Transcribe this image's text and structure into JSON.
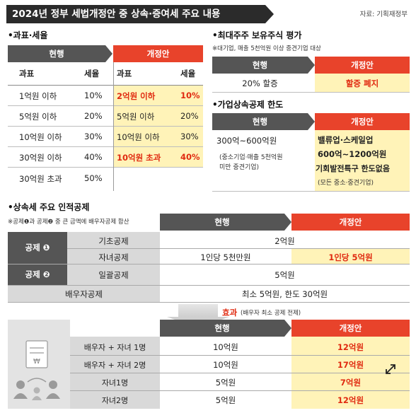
{
  "title": "2024년 정부 세법개정안 중 상속·증여세 주요 내용",
  "source": "자료: 기획재정부",
  "tax": {
    "section": "•과표·세율",
    "hdr_current": "현행",
    "hdr_revised": "개정안",
    "col_base": "과표",
    "col_rate": "세율",
    "rows": [
      {
        "cur_base": "1억원 이하",
        "cur_rate": "10%",
        "new_base": "2억원 이하",
        "new_rate": "10%"
      },
      {
        "cur_base": "5억원 이하",
        "cur_rate": "20%",
        "new_base": "5억원 이하",
        "new_rate": "20%"
      },
      {
        "cur_base": "10억원 이하",
        "cur_rate": "30%",
        "new_base": "10억원 이하",
        "new_rate": "30%"
      },
      {
        "cur_base": "30억원 이하",
        "cur_rate": "40%",
        "new_base": "10억원 초과",
        "new_rate": "40%"
      },
      {
        "cur_base": "30억원 초과",
        "cur_rate": "50%",
        "new_base": "",
        "new_rate": ""
      }
    ]
  },
  "stock": {
    "section": "•최대주주 보유주식 평가",
    "note": "※대기업, 매출 5천억원 이상 중견기업 대상",
    "hdr_current": "현행",
    "hdr_revised": "개정안",
    "current": "20% 할증",
    "revised": "할증 폐지"
  },
  "family": {
    "section": "•가업상속공제 한도",
    "hdr_current": "현행",
    "hdr_revised": "개정안",
    "current_main": "300억~600억원",
    "current_sub1": "(중소기업·매출 5천억원",
    "current_sub2": "미만 중견기업)",
    "revised_1": "밸류업·스케일업",
    "revised_2": "600억~1200억원",
    "revised_3": "기회발전특구 한도없음",
    "revised_4": "(모든 중소·중견기업)"
  },
  "deduction": {
    "section": "•상속세 주요 인적공제",
    "note": "※공제❶과 공제❷ 중 큰 금액에 배우자공제 합산",
    "hdr_current": "현행",
    "hdr_revised": "개정안",
    "group1": "공제 ❶",
    "group2": "공제 ❷",
    "basic_label": "기초공제",
    "basic_value": "2억원",
    "child_label": "자녀공제",
    "child_current": "1인당 5천만원",
    "child_revised": "1인당 5억원",
    "lump_label": "일괄공제",
    "lump_value": "5억원",
    "spouse_label": "배우자공제",
    "spouse_value": "최소 5억원, 한도 30억원"
  },
  "effect": {
    "title": "효과",
    "title_note": "(배우자 최소 공제 전제)",
    "hdr_current": "현행",
    "hdr_revised": "개정안",
    "rows": [
      {
        "label": "배우자 + 자녀 1명",
        "current": "10억원",
        "revised": "12억원"
      },
      {
        "label": "배우자 + 자녀 2명",
        "current": "10억원",
        "revised": "17억원"
      },
      {
        "label": "자녀1명",
        "current": "5억원",
        "revised": "7억원"
      },
      {
        "label": "자녀2명",
        "current": "5억원",
        "revised": "12억원"
      }
    ]
  },
  "colors": {
    "accent_red": "#e8432b",
    "dark_grey": "#555555",
    "highlight_yellow": "#fff3b8"
  }
}
